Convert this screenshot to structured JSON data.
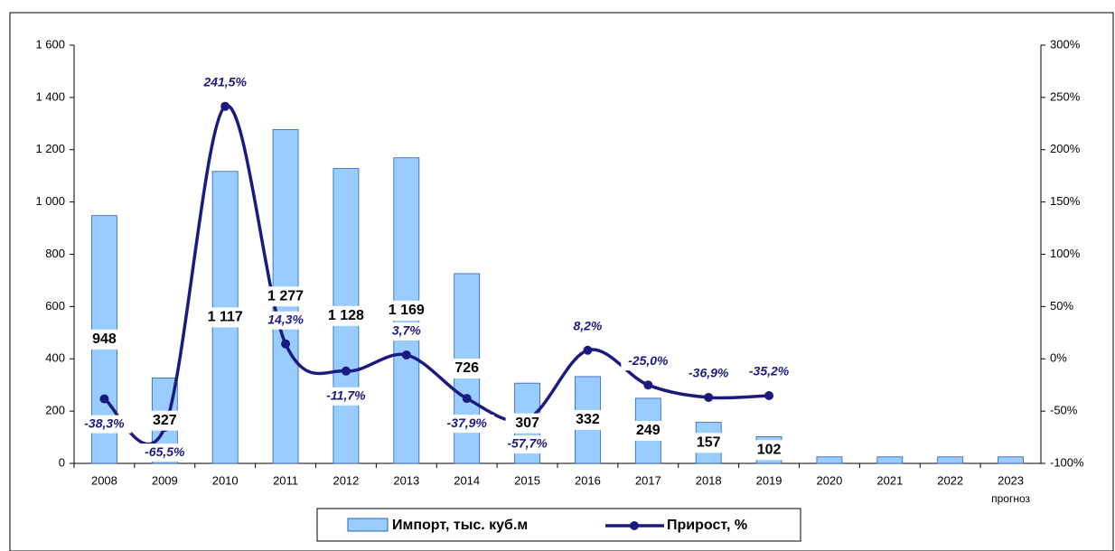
{
  "chart_data": {
    "type": "bar-line",
    "categories": [
      "2008",
      "2009",
      "2010",
      "2011",
      "2012",
      "2013",
      "2014",
      "2015",
      "2016",
      "2017",
      "2018",
      "2019",
      "2020",
      "2021",
      "2022",
      "2023"
    ],
    "category_note": "прогноз",
    "series": [
      {
        "name": "Импорт, тыс. куб.м",
        "type": "bar",
        "color": "#99ccff",
        "values": [
          948,
          327,
          1117,
          1277,
          1128,
          1169,
          726,
          307,
          332,
          249,
          157,
          102,
          25,
          25,
          25,
          25
        ],
        "value_labels": [
          "948",
          "327",
          "1 117",
          "1 277",
          "1 128",
          "1 169",
          "726",
          "307",
          "332",
          "249",
          "157",
          "102",
          null,
          null,
          null,
          null
        ]
      },
      {
        "name": "Прирост, %",
        "type": "line",
        "axis": "y2",
        "color": "#1a1a80",
        "values": [
          -38.3,
          -65.5,
          241.5,
          14.3,
          -11.7,
          3.7,
          -37.9,
          -57.7,
          8.2,
          -25.0,
          -36.9,
          -35.2,
          null,
          null,
          null,
          null
        ],
        "value_labels": [
          "-38,3%",
          "-65,5%",
          "241,5%",
          "14,3%",
          "-11,7%",
          "3,7%",
          "-37,9%",
          "-57,7%",
          "8,2%",
          "-25,0%",
          "-36,9%",
          "-35,2%",
          null,
          null,
          null,
          null
        ]
      }
    ],
    "ylim": [
      0,
      1600
    ],
    "yticks": [
      0,
      200,
      400,
      600,
      800,
      {
        "value": 1000,
        "label": "1 000"
      },
      {
        "value": 1200,
        "label": "1 200"
      },
      {
        "value": 1400,
        "label": "1 400"
      },
      {
        "value": 1600,
        "label": "1 600"
      }
    ],
    "y2lim": [
      -100,
      300
    ],
    "y2ticks": [
      {
        "value": -100,
        "label": "-100%"
      },
      {
        "value": -50,
        "label": "-50%"
      },
      {
        "value": 0,
        "label": "0%"
      },
      {
        "value": 50,
        "label": "50%"
      },
      {
        "value": 100,
        "label": "100%"
      },
      {
        "value": 150,
        "label": "150%"
      },
      {
        "value": 200,
        "label": "200%"
      },
      {
        "value": 250,
        "label": "250%"
      },
      {
        "value": 300,
        "label": "300%"
      }
    ],
    "legend": "bottom"
  }
}
